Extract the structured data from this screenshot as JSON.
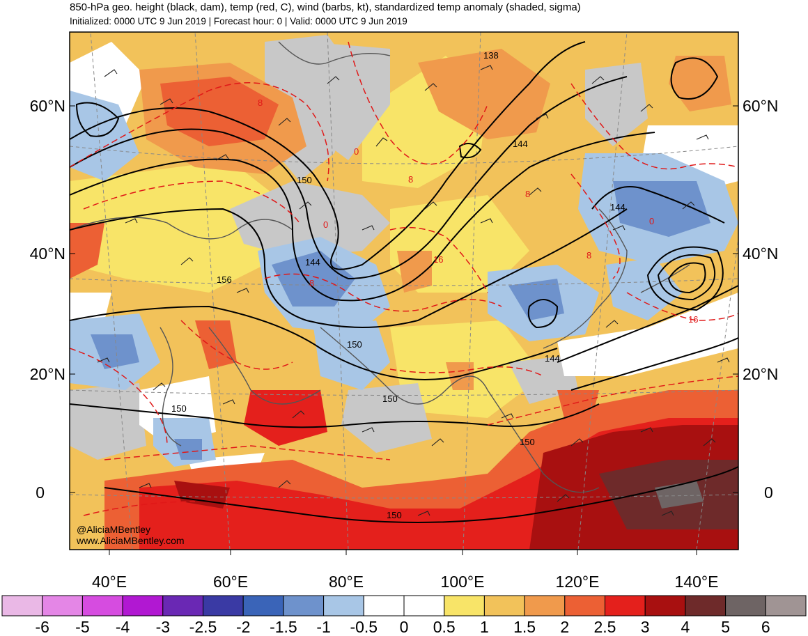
{
  "header": {
    "title": "850-hPa geo. height (black, dam), temp (red, C), wind (barbs, kt), standardized temp anomaly (shaded, sigma)",
    "subtitle": "Initialized: 0000 UTC 9 Jun 2019 | Forecast hour: 0 | Valid: 0000 UTC 9 Jun 2019"
  },
  "map": {
    "lat_labels": [
      "60°N",
      "40°N",
      "20°N",
      "0"
    ],
    "lon_labels": [
      "40°E",
      "60°E",
      "80°E",
      "100°E",
      "120°E",
      "140°E"
    ],
    "height_contour_labels": [
      "138",
      "144",
      "150",
      "156",
      "144",
      "150",
      "144",
      "150",
      "150",
      "150",
      "144",
      "150"
    ],
    "temp_contour_labels": [
      "8",
      "0",
      "8",
      "0",
      "8",
      "16",
      "8",
      "0",
      "8",
      "16"
    ],
    "credit": [
      "@AliciaMBentley",
      "www.AliciaMBentley.com"
    ]
  },
  "colorbar": {
    "labels": [
      "-6",
      "-5",
      "-4",
      "-3",
      "-2.5",
      "-2",
      "-1.5",
      "-1",
      "-0.5",
      "0",
      "0.5",
      "1",
      "1.5",
      "2",
      "2.5",
      "3",
      "4",
      "5",
      "6"
    ],
    "colors": [
      "#eab8e6",
      "#e486e6",
      "#d64ce0",
      "#b118d2",
      "#6a28b4",
      "#3a3aa4",
      "#3a64b8",
      "#6e92cc",
      "#a8c6e6",
      "#ffffff",
      "#ffffff",
      "#f8e468",
      "#f2c25a",
      "#f09a4c",
      "#ec6034",
      "#e4201c",
      "#a81010",
      "#6e2a2a",
      "#6e6464",
      "#a09494"
    ]
  },
  "palette": {
    "anomaly_neg": "#a8c6e6",
    "anomaly_neg2": "#6e92cc",
    "anomaly_pos1": "#f8e468",
    "anomaly_pos2": "#f2c25a",
    "anomaly_pos3": "#f09a4c",
    "anomaly_pos4": "#ec6034",
    "anomaly_pos5": "#e4201c",
    "anomaly_pos6": "#a81010",
    "grey": "#c8c8c8",
    "height_contour": "#000000",
    "temp_contour": "#e01818",
    "coast": "#555555"
  }
}
